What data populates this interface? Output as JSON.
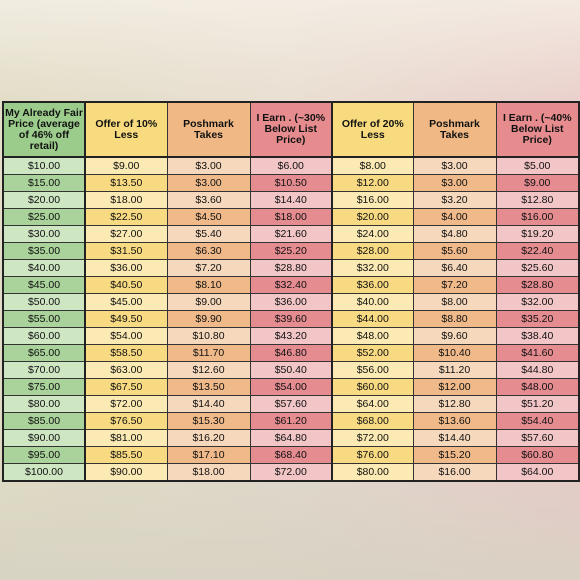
{
  "table": {
    "headers": [
      "My Already Fair Price (average of 46% off retail)",
      "Offer of 10% Less",
      "Poshmark Takes",
      "I Earn . (~30% Below List Price)",
      "Offer of 20% Less",
      "Poshmark Takes",
      "I Earn . (~40% Below List Price)"
    ],
    "rows": [
      [
        "$10.00",
        "$9.00",
        "$3.00",
        "$6.00",
        "$8.00",
        "$3.00",
        "$5.00"
      ],
      [
        "$15.00",
        "$13.50",
        "$3.00",
        "$10.50",
        "$12.00",
        "$3.00",
        "$9.00"
      ],
      [
        "$20.00",
        "$18.00",
        "$3.60",
        "$14.40",
        "$16.00",
        "$3.20",
        "$12.80"
      ],
      [
        "$25.00",
        "$22.50",
        "$4.50",
        "$18.00",
        "$20.00",
        "$4.00",
        "$16.00"
      ],
      [
        "$30.00",
        "$27.00",
        "$5.40",
        "$21.60",
        "$24.00",
        "$4.80",
        "$19.20"
      ],
      [
        "$35.00",
        "$31.50",
        "$6.30",
        "$25.20",
        "$28.00",
        "$5.60",
        "$22.40"
      ],
      [
        "$40.00",
        "$36.00",
        "$7.20",
        "$28.80",
        "$32.00",
        "$6.40",
        "$25.60"
      ],
      [
        "$45.00",
        "$40.50",
        "$8.10",
        "$32.40",
        "$36.00",
        "$7.20",
        "$28.80"
      ],
      [
        "$50.00",
        "$45.00",
        "$9.00",
        "$36.00",
        "$40.00",
        "$8.00",
        "$32.00"
      ],
      [
        "$55.00",
        "$49.50",
        "$9.90",
        "$39.60",
        "$44.00",
        "$8.80",
        "$35.20"
      ],
      [
        "$60.00",
        "$54.00",
        "$10.80",
        "$43.20",
        "$48.00",
        "$9.60",
        "$38.40"
      ],
      [
        "$65.00",
        "$58.50",
        "$11.70",
        "$46.80",
        "$52.00",
        "$10.40",
        "$41.60"
      ],
      [
        "$70.00",
        "$63.00",
        "$12.60",
        "$50.40",
        "$56.00",
        "$11.20",
        "$44.80"
      ],
      [
        "$75.00",
        "$67.50",
        "$13.50",
        "$54.00",
        "$60.00",
        "$12.00",
        "$48.00"
      ],
      [
        "$80.00",
        "$72.00",
        "$14.40",
        "$57.60",
        "$64.00",
        "$12.80",
        "$51.20"
      ],
      [
        "$85.00",
        "$76.50",
        "$15.30",
        "$61.20",
        "$68.00",
        "$13.60",
        "$54.40"
      ],
      [
        "$90.00",
        "$81.00",
        "$16.20",
        "$64.80",
        "$72.00",
        "$14.40",
        "$57.60"
      ],
      [
        "$95.00",
        "$85.50",
        "$17.10",
        "$68.40",
        "$76.00",
        "$15.20",
        "$60.80"
      ],
      [
        "$100.00",
        "$90.00",
        "$18.00",
        "$72.00",
        "$80.00",
        "$16.00",
        "$64.00"
      ]
    ]
  },
  "colors": {
    "price_green": "#9ccc8c",
    "offer_yellow": "#f7db7e",
    "poshmark_orange": "#efb884",
    "earn_red": "#e68c8f"
  }
}
